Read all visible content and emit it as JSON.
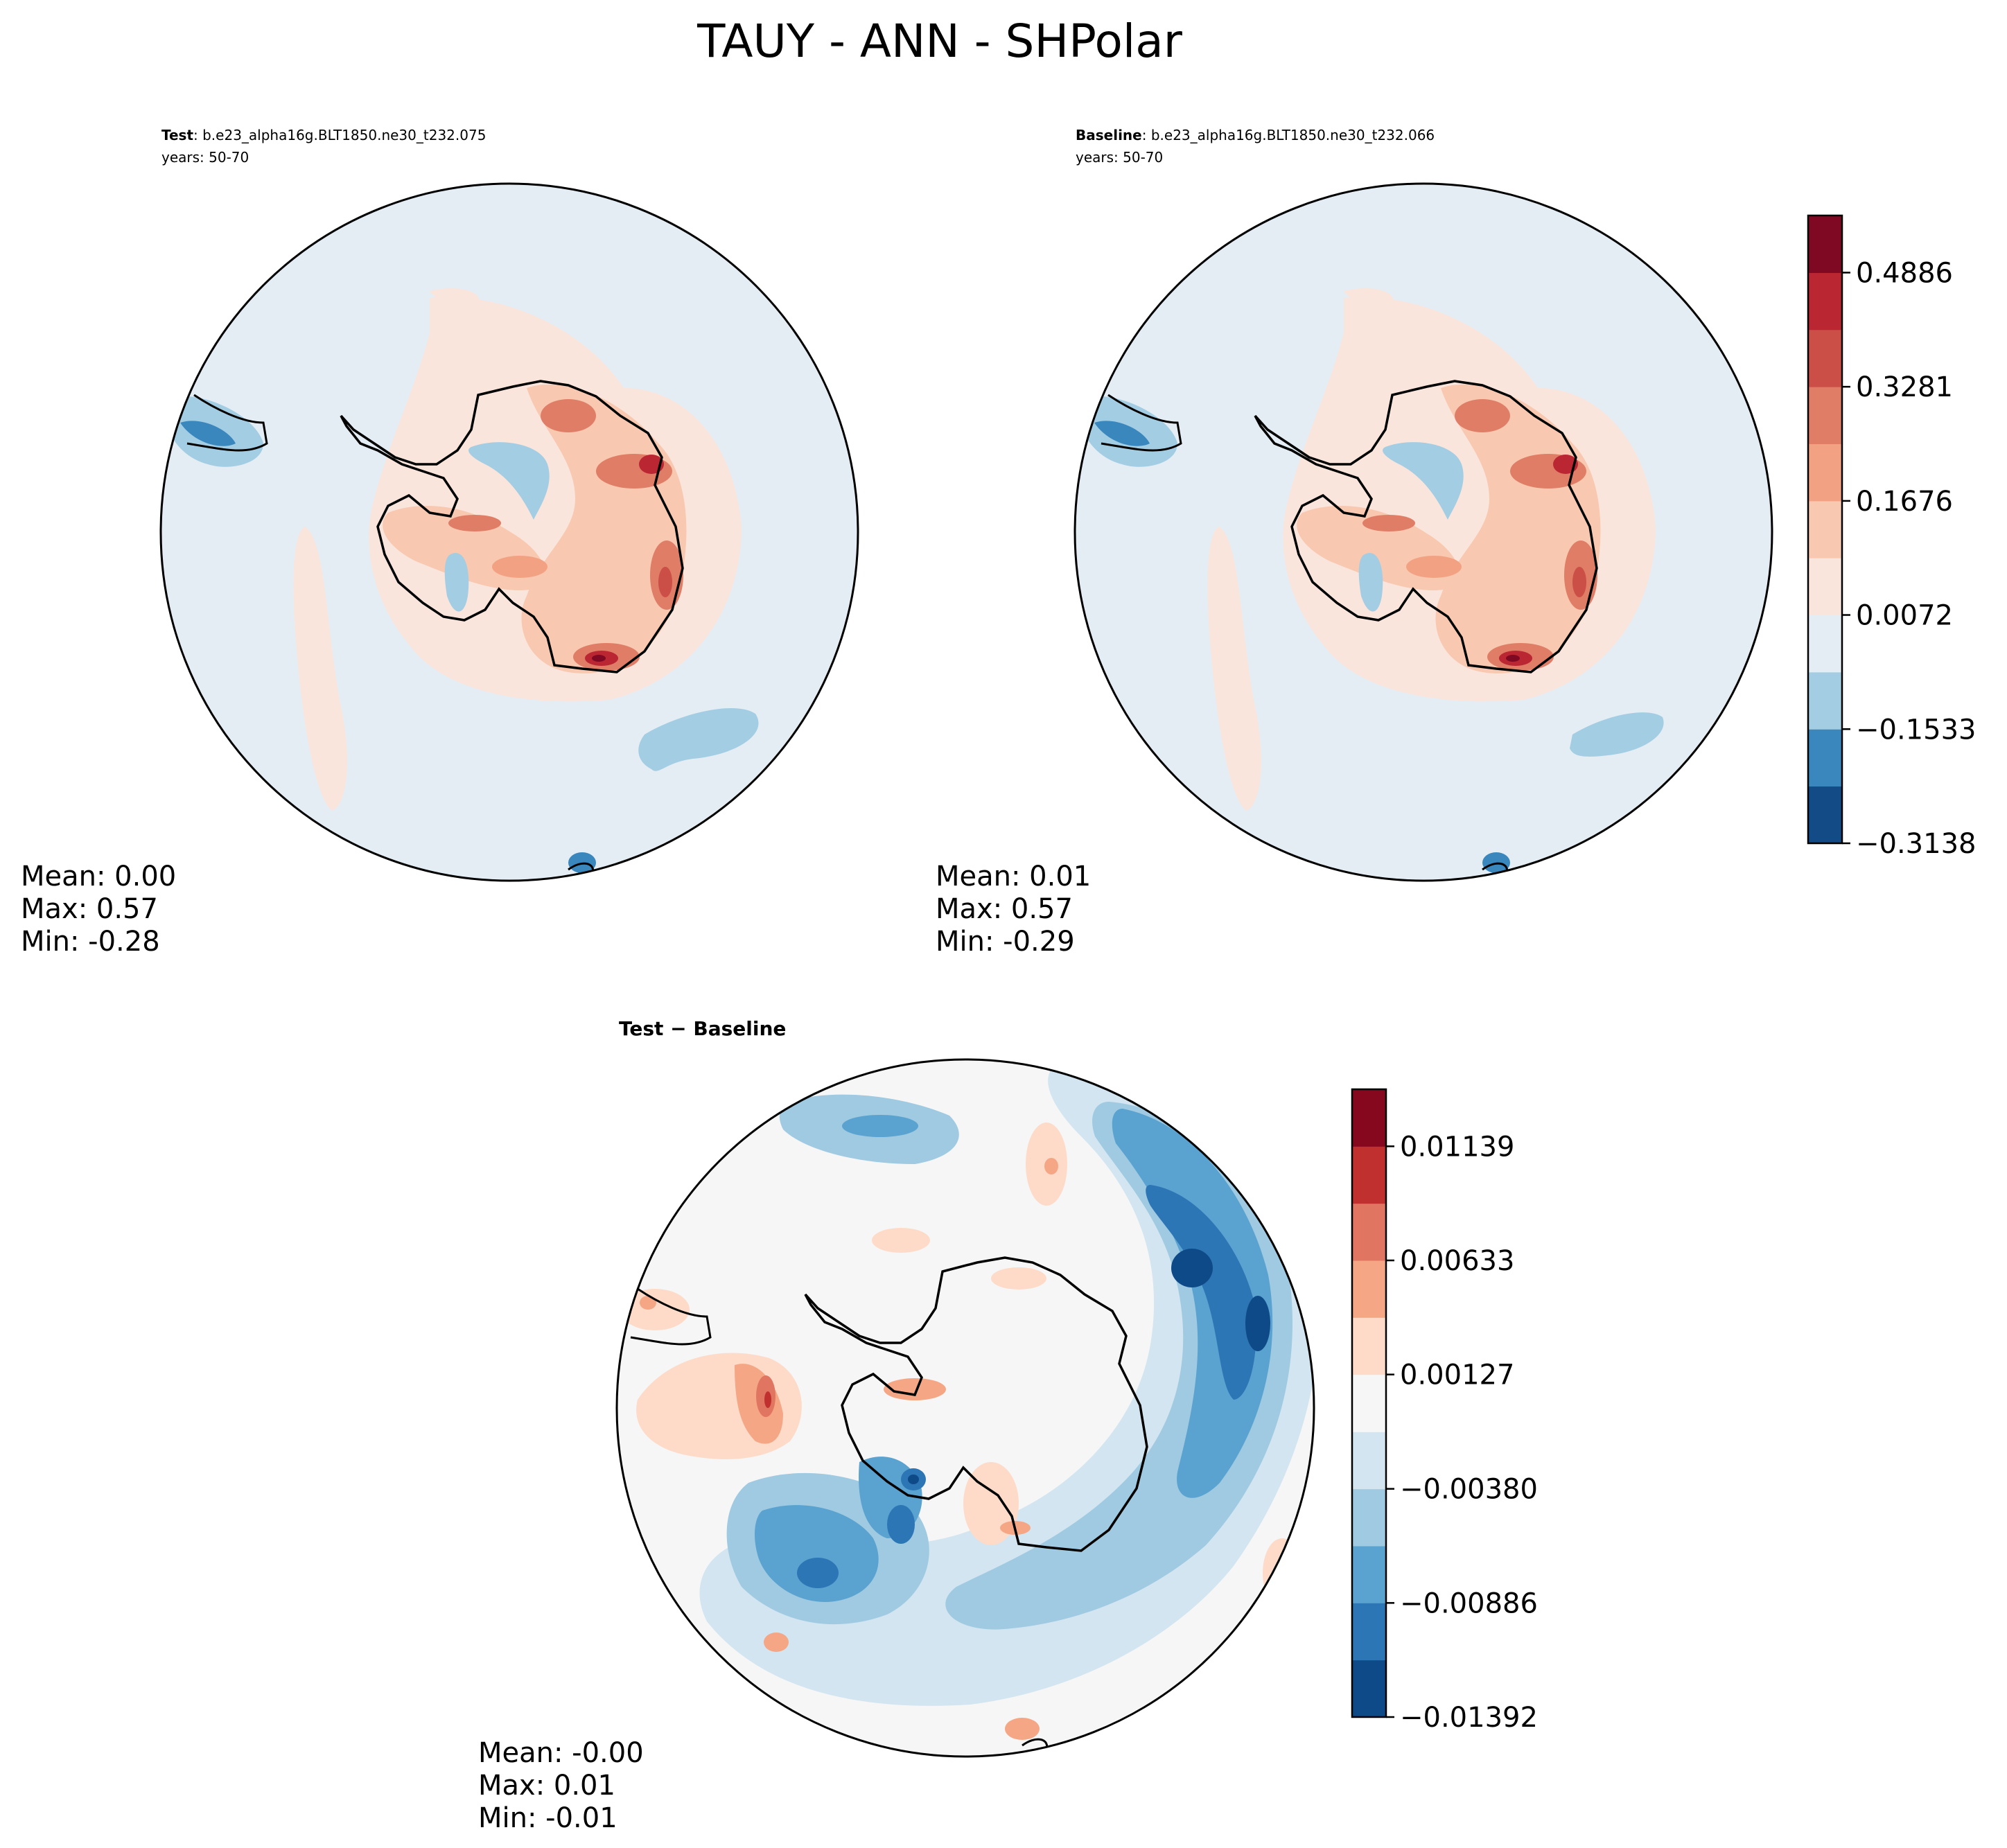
{
  "figure": {
    "title": "TAUY - ANN - SHPolar"
  },
  "chart_data": [
    {
      "type": "heatmap",
      "panel": "test",
      "label_bold": "Test",
      "label_rest": ": b.e23_alpha16g.BLT1850.ne30_t232.075",
      "years": "years: 50-70",
      "projection": "south-polar-stereographic",
      "stats": {
        "mean": "Mean:  0.00",
        "max": "Max:  0.57",
        "min": "Min: -0.28"
      },
      "colorbar": {
        "ticks": [
          "0.4886",
          "0.3281",
          "0.1676",
          "0.0072",
          "−0.1533",
          "−0.3138"
        ],
        "levels": [
          -0.3138,
          -0.2335,
          -0.1533,
          -0.073,
          0.0072,
          0.0875,
          0.1676,
          0.2479,
          0.3281,
          0.4084,
          0.4886,
          0.5689
        ],
        "colors": [
          "#134b87",
          "#3a87bd",
          "#a3cde3",
          "#e4edf4",
          "#fae5dc",
          "#f8c8b0",
          "#f2a283",
          "#e07d66",
          "#cb4e47",
          "#bb2633",
          "#7f0822"
        ]
      }
    },
    {
      "type": "heatmap",
      "panel": "baseline",
      "label_bold": "Baseline",
      "label_rest": ": b.e23_alpha16g.BLT1850.ne30_t232.066",
      "years": "years: 50-70",
      "projection": "south-polar-stereographic",
      "stats": {
        "mean": "Mean:  0.01",
        "max": "Max:  0.57",
        "min": "Min: -0.29"
      }
    },
    {
      "type": "heatmap",
      "panel": "difference",
      "label_bold": "Test − Baseline",
      "projection": "south-polar-stereographic",
      "stats": {
        "mean": "Mean: -0.00",
        "max": "Max:  0.01",
        "min": "Min: -0.01"
      },
      "colorbar": {
        "ticks": [
          "0.01139",
          "0.00633",
          "0.00127",
          "−0.00380",
          "−0.00886",
          "−0.01392"
        ],
        "levels": [
          -0.01392,
          -0.01139,
          -0.00886,
          -0.00633,
          -0.0038,
          -0.00127,
          0.00127,
          0.0038,
          0.00633,
          0.00886,
          0.01139,
          0.01392
        ],
        "colors": [
          "#0e4a88",
          "#2c76b6",
          "#5aa2cf",
          "#9fcae1",
          "#d2e5f0",
          "#f6f6f6",
          "#fddbc8",
          "#f5a785",
          "#e07562",
          "#c0302e",
          "#86081f"
        ]
      }
    }
  ]
}
